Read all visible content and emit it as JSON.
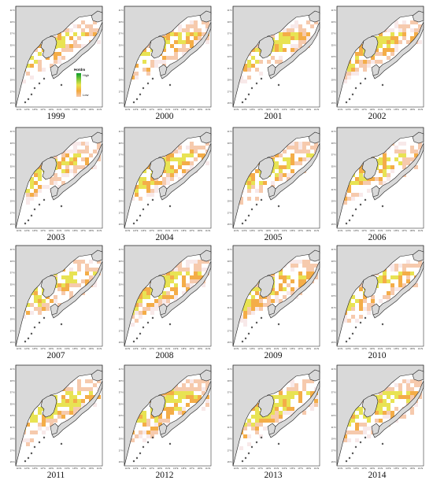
{
  "figure": {
    "panels": [
      {
        "year": "1999"
      },
      {
        "year": "2000"
      },
      {
        "year": "2001"
      },
      {
        "year": "2002"
      },
      {
        "year": "2003"
      },
      {
        "year": "2004"
      },
      {
        "year": "2005"
      },
      {
        "year": "2006"
      },
      {
        "year": "2007"
      },
      {
        "year": "2008"
      },
      {
        "year": "2009"
      },
      {
        "year": "2010"
      },
      {
        "year": "2011"
      },
      {
        "year": "2012"
      },
      {
        "year": "2013"
      },
      {
        "year": "2014"
      }
    ],
    "lat_ticks": [
      "41°N",
      "39°N",
      "37°N",
      "35°N",
      "33°N",
      "31°N",
      "29°N",
      "27°N",
      "25°N"
    ],
    "lon_ticks": [
      "121°E",
      "123°E",
      "125°E",
      "127°E",
      "129°E",
      "131°E",
      "133°E",
      "135°E",
      "137°E",
      "139°E",
      "141°E"
    ],
    "legend": {
      "title": "Hotdm",
      "high": "High",
      "low": "Low"
    },
    "colors": {
      "land": "#d9d9d9",
      "coast": "#222222",
      "sea": "#ffffff",
      "scale": [
        "#f8e8e8",
        "#f6c7a9",
        "#f3a93e",
        "#e7e24a",
        "#7cc93a",
        "#0a9a2a"
      ]
    }
  }
}
